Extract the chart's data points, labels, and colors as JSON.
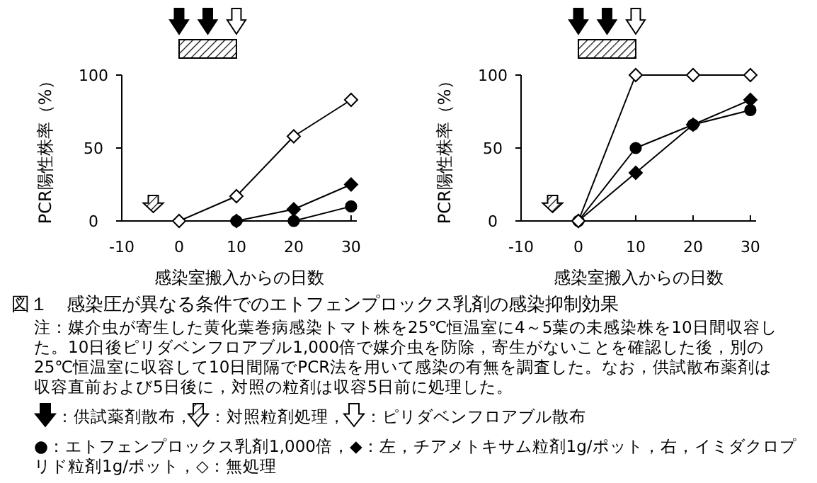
{
  "chart_data": [
    {
      "type": "line",
      "xlabel": "感染室搬入からの日数",
      "ylabel": "PCR陽性株率（%）",
      "xlim": [
        -10,
        31
      ],
      "ylim": [
        0,
        100
      ],
      "xticks": [
        -10,
        0,
        10,
        20,
        30
      ],
      "yticks": [
        0,
        50,
        100
      ],
      "series": [
        {
          "x": [
            0,
            10,
            20,
            30
          ],
          "values": [
            0,
            17,
            58,
            83
          ],
          "color": "#000000",
          "colors": [
            "#ffffff",
            "#ffffff",
            "#ffffff",
            "#ffffff"
          ],
          "marker": "diamond"
        },
        {
          "x": [
            10,
            20,
            30
          ],
          "values": [
            0,
            0,
            10
          ],
          "color": "#000000",
          "marker": "circle"
        },
        {
          "x": [
            10,
            20,
            30
          ],
          "values": [
            0,
            8,
            25
          ],
          "color": "#000000",
          "marker": "diamond"
        }
      ]
    },
    {
      "type": "line",
      "xlabel": "感染室搬入からの日数",
      "ylabel": "PCR陽性株率（%）",
      "xlim": [
        -10,
        31
      ],
      "ylim": [
        0,
        100
      ],
      "xticks": [
        -10,
        0,
        10,
        20,
        30
      ],
      "yticks": [
        0,
        50,
        100
      ],
      "series": [
        {
          "x": [
            0,
            10,
            20,
            30
          ],
          "values": [
            0,
            100,
            100,
            100
          ],
          "color": "#000000",
          "colors": [
            "#ffffff",
            "#ffffff",
            "#ffffff",
            "#ffffff"
          ],
          "marker": "diamond"
        },
        {
          "x": [
            0,
            10,
            20,
            30
          ],
          "values": [
            0,
            50,
            66,
            76
          ],
          "color": "#000000",
          "marker": "circle"
        },
        {
          "x": [
            0,
            10,
            20,
            30
          ],
          "values": [
            0,
            33,
            66,
            83
          ],
          "color": "#000000",
          "marker": "diamond"
        }
      ]
    },
    {
      "type": "other",
      "title": "図１　感染圧が異なる条件でのエトフェンプロックス乳剤の感染抑制効果",
      "annotations": [
        "注：媒介虫が寄生した黄化葉巻病感染トマト株を25℃恒温室に4～5葉の未感染株を10日間収容した。10日後ピリダベンフロアブル1,000倍で媒介虫を防除，寄生がないことを確認した後，別の25℃恒温室に収容して10日間隔でPCR法を用いて感染の有無を調査した。なお，供試散布薬剤は収容直前および5日後に，対照の粒剤は収容5日前に処理した。",
        "：供試薬剤散布，",
        "：対照粒剤処理，",
        "：ピリダベンフロアブル散布",
        "●：エトフェンプロックス乳剤1,000倍，◆：左，チアメトキサム粒剤1g/ポット，右，イミダクロプリド粒剤1g/ポット，◇：無処理"
      ]
    }
  ]
}
